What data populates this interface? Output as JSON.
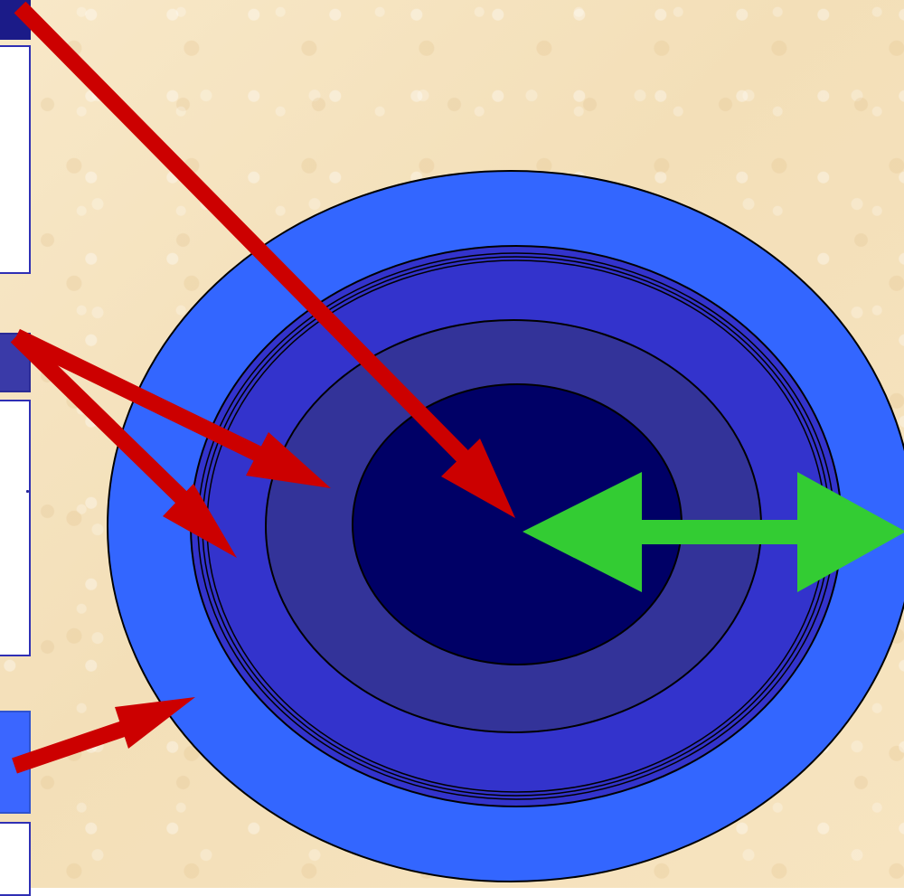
{
  "colors": {
    "background": "#f7e6c2",
    "outer_ring": "#3366ff",
    "second_ring": "#3333cc",
    "third_ring": "#333399",
    "core": "#000066",
    "red_arrow": "#cc0000",
    "green_arrow": "#33cc33",
    "outline": "#000000"
  }
}
